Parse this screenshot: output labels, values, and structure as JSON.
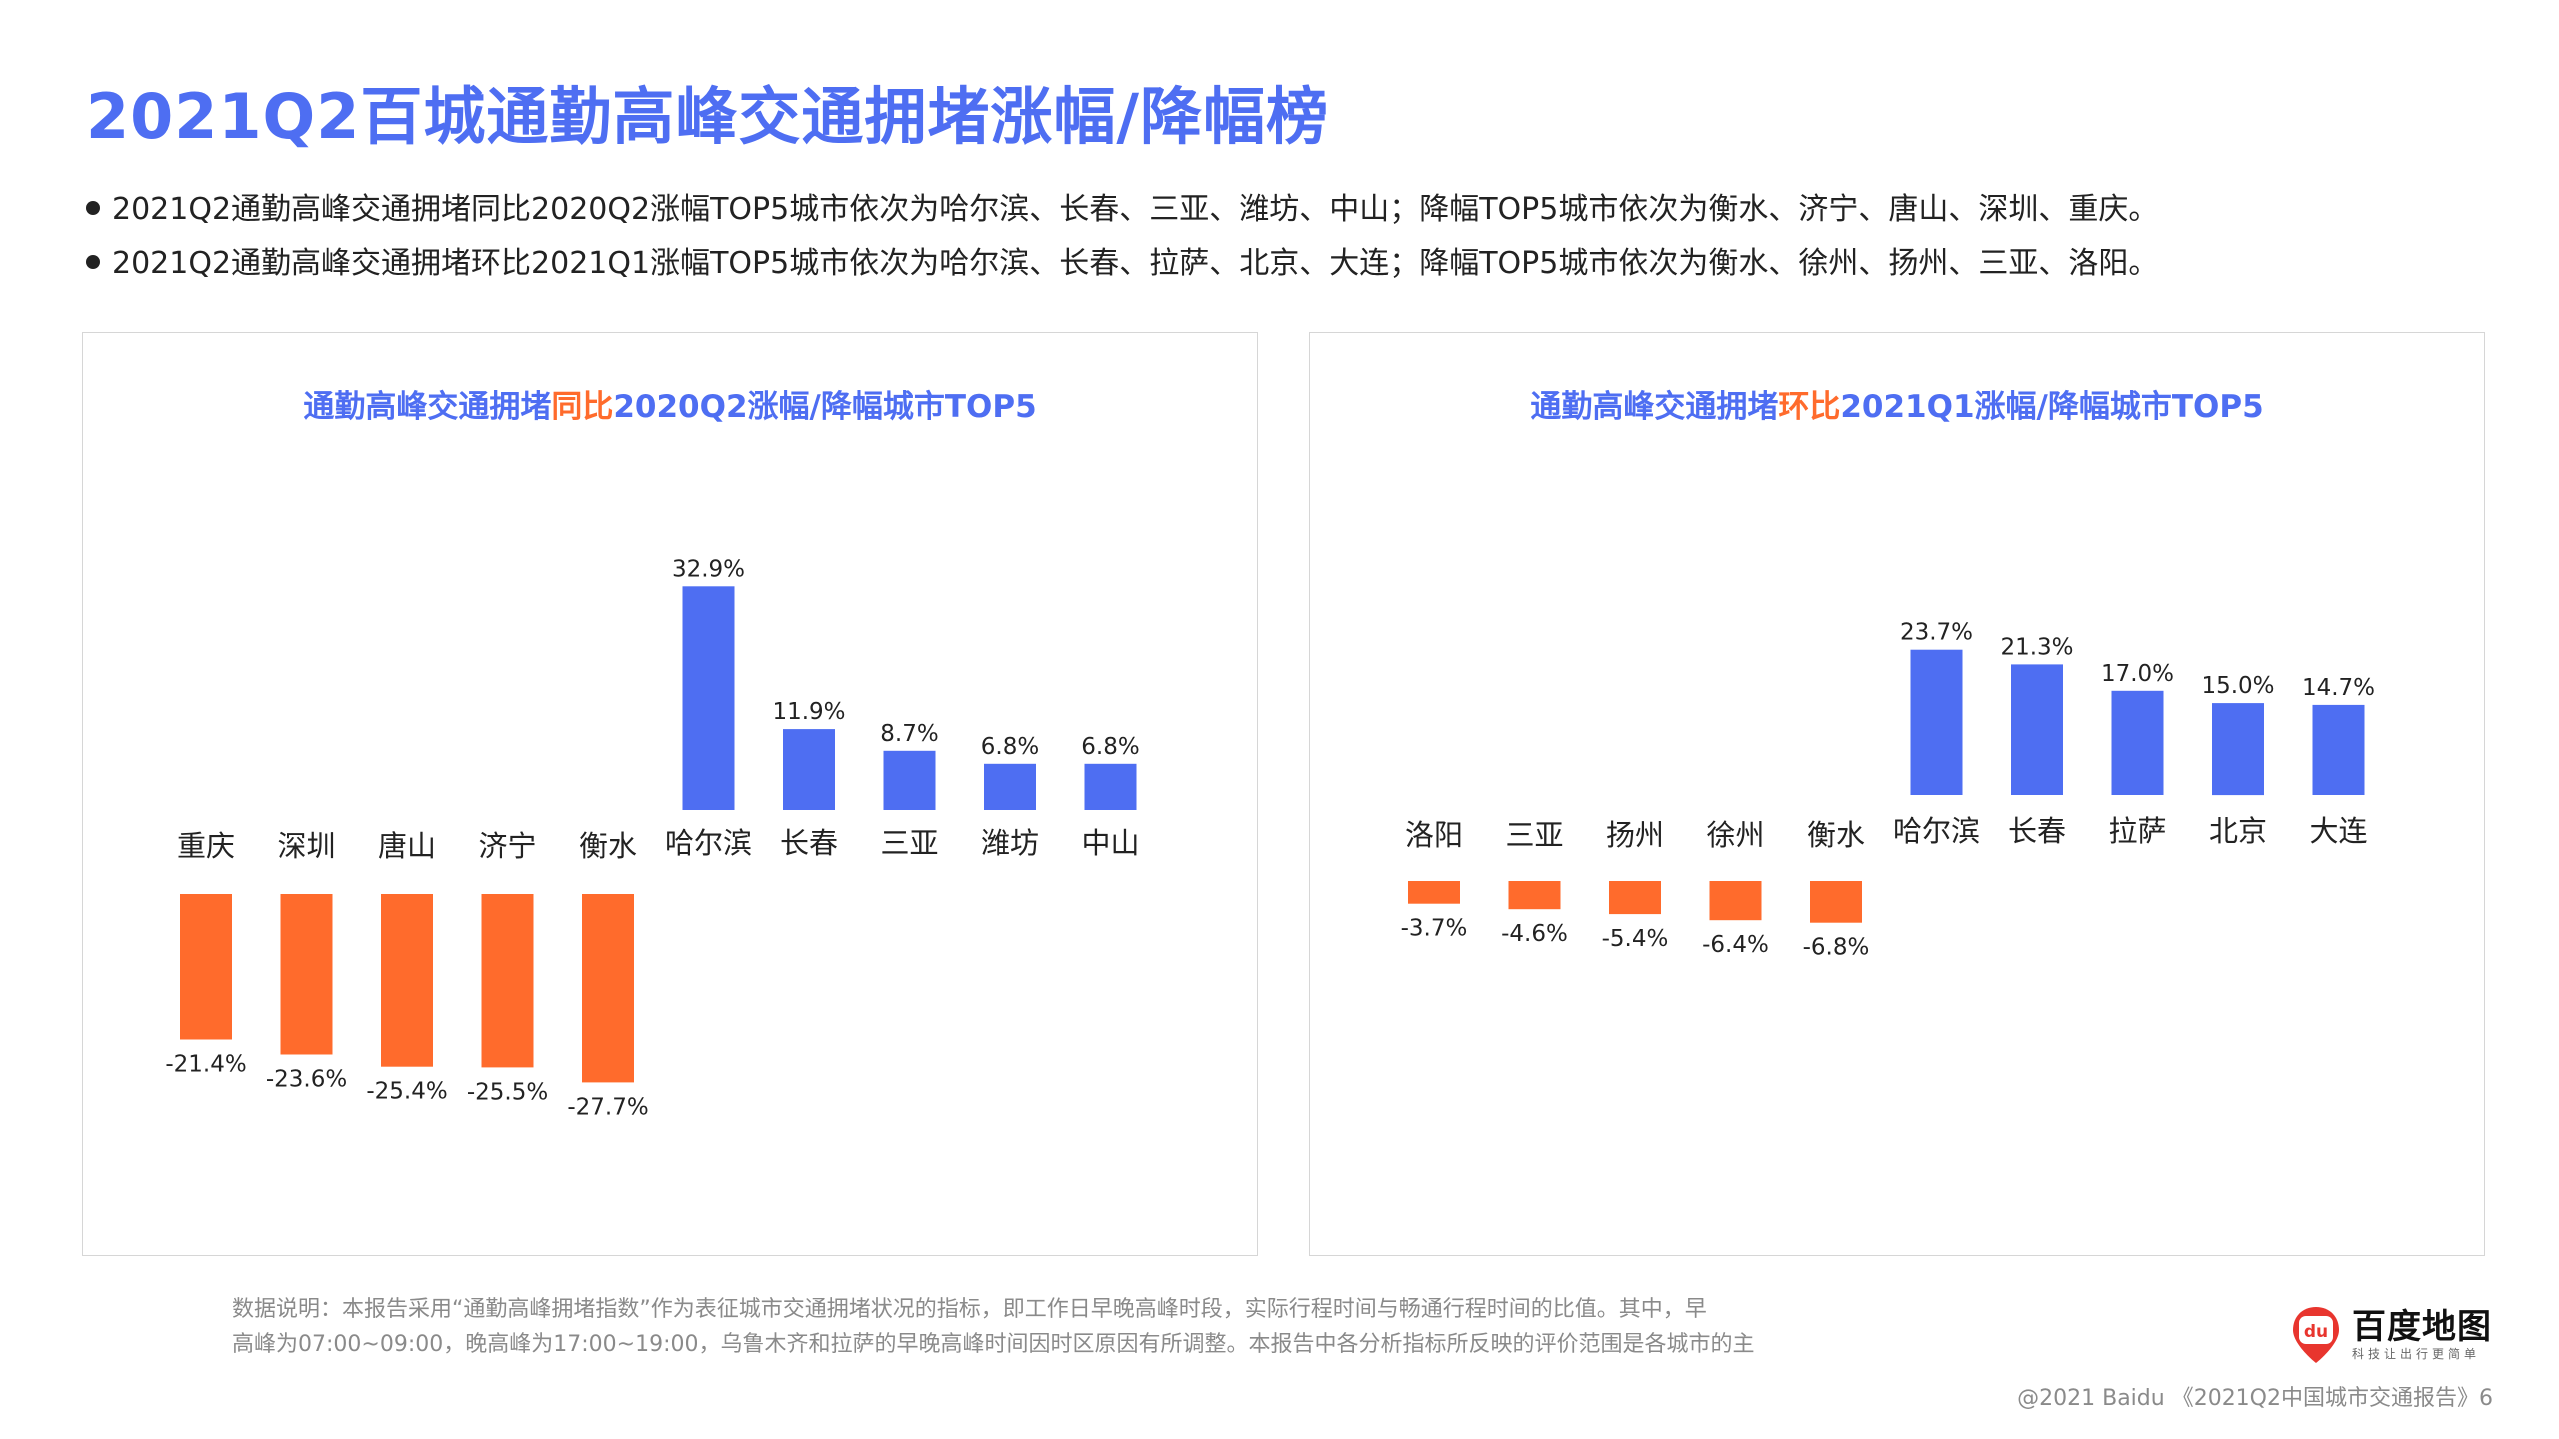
{
  "title": "2021Q2百城通勤高峰交通拥堵涨幅/降幅榜",
  "bullets": [
    "2021Q2通勤高峰交通拥堵同比2020Q2涨幅TOP5城市依次为哈尔滨、长春、三亚、潍坊、中山；降幅TOP5城市依次为衡水、济宁、唐山、深圳、重庆。",
    "2021Q2通勤高峰交通拥堵环比2021Q1涨幅TOP5城市依次为哈尔滨、长春、拉萨、北京、大连；降幅TOP5城市依次为衡水、徐州、扬州、三亚、洛阳。"
  ],
  "colors": {
    "title_blue": "#4e6ef2",
    "increase_bar": "#4e6ef2",
    "decrease_bar": "#ff6b2c"
  },
  "panels": {
    "left": {
      "title_pre": "通勤高峰交通拥堵",
      "title_hl": "同比",
      "title_post": "2020Q2涨幅/降幅城市TOP5"
    },
    "right": {
      "title_pre": "通勤高峰交通拥堵",
      "title_hl": "环比",
      "title_post": "2021Q1涨幅/降幅城市TOP5"
    }
  },
  "chart_data": [
    {
      "type": "bar",
      "title": "通勤高峰交通拥堵同比2020Q2涨幅/降幅城市TOP5",
      "categories": [
        "重庆",
        "深圳",
        "唐山",
        "济宁",
        "衡水",
        "哈尔滨",
        "长春",
        "三亚",
        "潍坊",
        "中山"
      ],
      "values": [
        -21.4,
        -23.6,
        -25.4,
        -25.5,
        -27.7,
        32.9,
        11.9,
        8.7,
        6.8,
        6.8
      ],
      "value_labels": [
        "-21.4%",
        "-23.6%",
        "-25.4%",
        "-25.5%",
        "-27.7%",
        "32.9%",
        "11.9%",
        "8.7%",
        "6.8%",
        "6.8%"
      ],
      "unit": "%",
      "grid": false,
      "legend": "none"
    },
    {
      "type": "bar",
      "title": "通勤高峰交通拥堵环比2021Q1涨幅/降幅城市TOP5",
      "categories": [
        "洛阳",
        "三亚",
        "扬州",
        "徐州",
        "衡水",
        "哈尔滨",
        "长春",
        "拉萨",
        "北京",
        "大连"
      ],
      "values": [
        -3.7,
        -4.6,
        -5.4,
        -6.4,
        -6.8,
        23.7,
        21.3,
        17.0,
        15.0,
        14.7
      ],
      "value_labels": [
        "-3.7%",
        "-4.6%",
        "-5.4%",
        "-6.4%",
        "-6.8%",
        "23.7%",
        "21.3%",
        "17.0%",
        "15.0%",
        "14.7%"
      ],
      "unit": "%",
      "grid": false,
      "legend": "none"
    }
  ],
  "footnote": [
    "数据说明：本报告采用“通勤高峰拥堵指数”作为表征城市交通拥堵状况的指标，即工作日早晚高峰时段，实际行程时间与畅通行程时间的比值。其中，早",
    "高峰为07:00~09:00，晚高峰为17:00~19:00，乌鲁木齐和拉萨的早晚高峰时间因时区原因有所调整。本报告中各分析指标所反映的评价范围是各城市的主"
  ],
  "logo": {
    "mark": "du",
    "name": "百度地图",
    "tagline": "科技让出行更简单"
  },
  "copyright": "@2021 Baidu 《2021Q2中国城市交通报告》6"
}
